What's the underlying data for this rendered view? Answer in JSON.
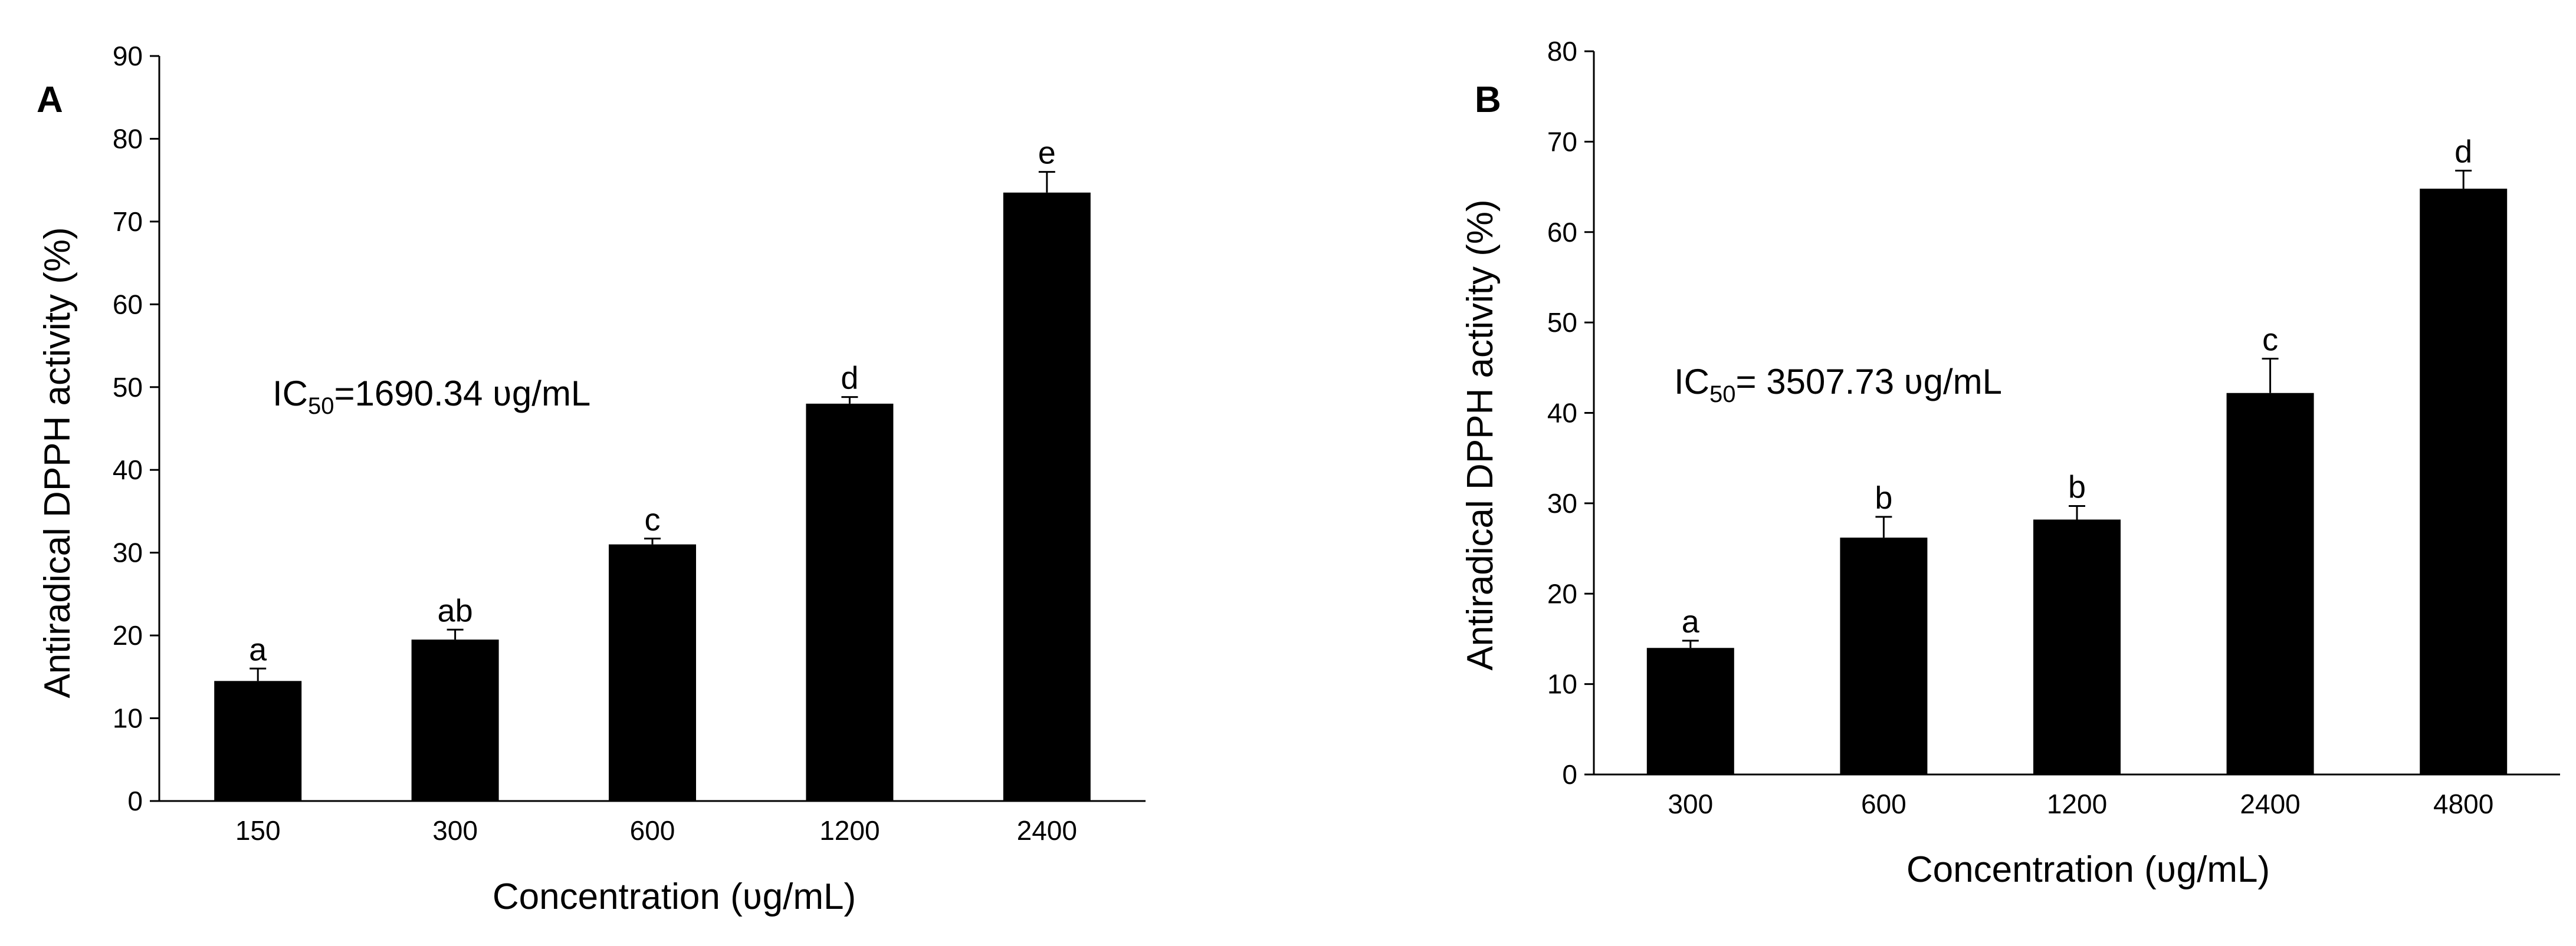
{
  "chart_data": [
    {
      "type": "bar",
      "panel_label": "A",
      "categories": [
        "150",
        "300",
        "600",
        "1200",
        "2400"
      ],
      "values": [
        14.5,
        19.5,
        31,
        48,
        73.5
      ],
      "errors": [
        1.5,
        1.2,
        0.7,
        0.8,
        2.5
      ],
      "significance": [
        "a",
        "ab",
        "c",
        "d",
        "e"
      ],
      "xlabel": "Concentration (ʋg/mL)",
      "ylabel": "Antiradical DPPH activity (%)",
      "ylim": [
        0,
        90
      ],
      "yticks": [
        0,
        10,
        20,
        30,
        40,
        50,
        60,
        70,
        80,
        90
      ],
      "annotation": {
        "prefix": "IC",
        "subscript": "50",
        "text": "=1690.34 ʋg/mL"
      },
      "bar_color": "#000000",
      "grid": false
    },
    {
      "type": "bar",
      "panel_label": "B",
      "categories": [
        "300",
        "600",
        "1200",
        "2400",
        "4800"
      ],
      "values": [
        14,
        26.2,
        28.2,
        42.2,
        64.8
      ],
      "errors": [
        0.8,
        2.3,
        1.5,
        3.8,
        2.0
      ],
      "significance": [
        "a",
        "b",
        "b",
        "c",
        "d"
      ],
      "xlabel": "Concentration (ʋg/mL)",
      "ylabel": "Antiradical DPPH activity (%)",
      "ylim": [
        0,
        80
      ],
      "yticks": [
        0,
        10,
        20,
        30,
        40,
        50,
        60,
        70,
        80
      ],
      "annotation": {
        "prefix": "IC",
        "subscript": "50",
        "text": "= 3507.73 ʋg/mL"
      },
      "bar_color": "#000000",
      "grid": false
    }
  ]
}
